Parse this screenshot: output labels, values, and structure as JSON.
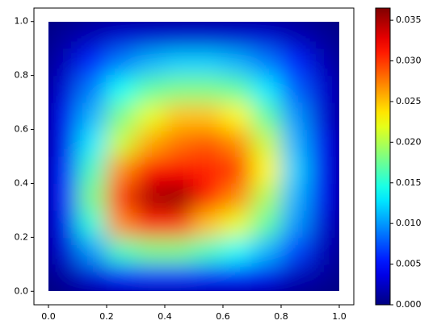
{
  "chart_data": {
    "type": "heatmap",
    "colormap": "jet",
    "x": [
      0.05,
      0.15,
      0.25,
      0.35,
      0.45,
      0.55,
      0.65,
      0.75,
      0.85,
      0.95
    ],
    "y": [
      0.05,
      0.15,
      0.25,
      0.35,
      0.45,
      0.55,
      0.65,
      0.75,
      0.85,
      0.95
    ],
    "values": [
      [
        0.001,
        0.003,
        0.005,
        0.006,
        0.006,
        0.005,
        0.005,
        0.004,
        0.002,
        0.001
      ],
      [
        0.003,
        0.01,
        0.016,
        0.018,
        0.018,
        0.016,
        0.014,
        0.011,
        0.007,
        0.002
      ],
      [
        0.004,
        0.015,
        0.027,
        0.031,
        0.03,
        0.025,
        0.022,
        0.017,
        0.01,
        0.003
      ],
      [
        0.005,
        0.018,
        0.03,
        0.035,
        0.036,
        0.031,
        0.027,
        0.02,
        0.011,
        0.004
      ],
      [
        0.005,
        0.016,
        0.027,
        0.032,
        0.032,
        0.031,
        0.03,
        0.023,
        0.012,
        0.004
      ],
      [
        0.004,
        0.013,
        0.021,
        0.026,
        0.028,
        0.029,
        0.027,
        0.021,
        0.011,
        0.004
      ],
      [
        0.004,
        0.011,
        0.018,
        0.022,
        0.025,
        0.025,
        0.023,
        0.017,
        0.01,
        0.003
      ],
      [
        0.003,
        0.009,
        0.014,
        0.017,
        0.018,
        0.018,
        0.017,
        0.013,
        0.008,
        0.003
      ],
      [
        0.002,
        0.006,
        0.009,
        0.011,
        0.012,
        0.012,
        0.011,
        0.009,
        0.006,
        0.002
      ],
      [
        0.001,
        0.002,
        0.003,
        0.003,
        0.003,
        0.003,
        0.003,
        0.003,
        0.002,
        0.001
      ]
    ],
    "xlim": [
      -0.05,
      1.05
    ],
    "ylim": [
      -0.05,
      1.05
    ],
    "xticks": [
      {
        "value": 0,
        "label": "0.0"
      },
      {
        "value": 0.2,
        "label": "0.2"
      },
      {
        "value": 0.4,
        "label": "0.4"
      },
      {
        "value": 0.6,
        "label": "0.6"
      },
      {
        "value": 0.8,
        "label": "0.8"
      },
      {
        "value": 1,
        "label": "1.0"
      }
    ],
    "yticks": [
      {
        "value": 0,
        "label": "0.0"
      },
      {
        "value": 0.2,
        "label": "0.2"
      },
      {
        "value": 0.4,
        "label": "0.4"
      },
      {
        "value": 0.6,
        "label": "0.6"
      },
      {
        "value": 0.8,
        "label": "0.8"
      },
      {
        "value": 1,
        "label": "1.0"
      }
    ],
    "clim": [
      0,
      0.0365
    ],
    "cticks": [
      {
        "value": 0,
        "label": "0.000"
      },
      {
        "value": 0.005,
        "label": "0.005"
      },
      {
        "value": 0.01,
        "label": "0.010"
      },
      {
        "value": 0.015,
        "label": "0.015"
      },
      {
        "value": 0.02,
        "label": "0.020"
      },
      {
        "value": 0.025,
        "label": "0.025"
      },
      {
        "value": 0.03,
        "label": "0.030"
      },
      {
        "value": 0.035,
        "label": "0.035"
      }
    ]
  }
}
